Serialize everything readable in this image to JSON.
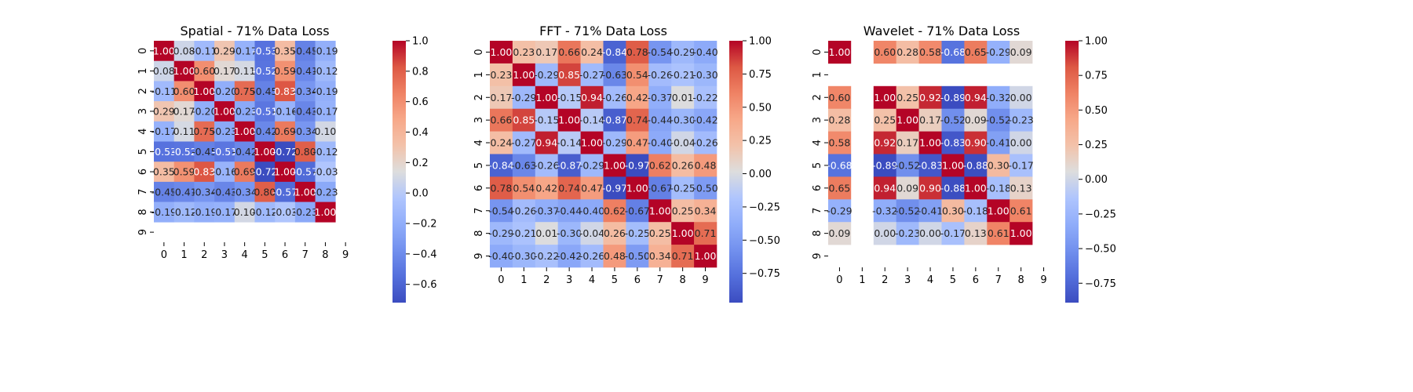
{
  "chart_data": [
    {
      "type": "heatmap",
      "title": "Spatial - 71% Data Loss",
      "xlabel": "",
      "ylabel": "",
      "x_tick_labels": [
        "0",
        "1",
        "2",
        "3",
        "4",
        "5",
        "6",
        "7",
        "8",
        "9"
      ],
      "y_tick_labels": [
        "0",
        "1",
        "2",
        "3",
        "4",
        "5",
        "6",
        "7",
        "8",
        "9"
      ],
      "colormap": "coolwarm",
      "vmin": -0.72,
      "vmax": 1.0,
      "colorbar_ticks": [
        -0.6,
        -0.4,
        -0.2,
        0.0,
        0.2,
        0.4,
        0.6,
        0.8,
        1.0
      ],
      "colorbar_tick_labels": [
        "−0.6",
        "−0.4",
        "−0.2",
        "0.0",
        "0.2",
        "0.4",
        "0.6",
        "0.8",
        "1.0"
      ],
      "values": [
        [
          1.0,
          0.08,
          -0.11,
          0.29,
          -0.17,
          -0.53,
          0.35,
          -0.45,
          -0.19,
          null
        ],
        [
          0.08,
          1.0,
          0.6,
          0.17,
          0.11,
          -0.52,
          0.59,
          -0.41,
          -0.12,
          null
        ],
        [
          -0.11,
          0.6,
          1.0,
          -0.2,
          0.75,
          -0.45,
          0.83,
          -0.34,
          -0.19,
          null
        ],
        [
          0.29,
          0.17,
          -0.2,
          1.0,
          -0.23,
          -0.51,
          -0.16,
          -0.43,
          -0.17,
          null
        ],
        [
          -0.17,
          0.11,
          0.75,
          -0.23,
          1.0,
          -0.42,
          0.69,
          -0.34,
          0.1,
          null
        ],
        [
          -0.53,
          -0.52,
          -0.45,
          -0.51,
          -0.42,
          1.0,
          -0.72,
          0.8,
          -0.12,
          null
        ],
        [
          0.35,
          0.59,
          0.83,
          -0.16,
          0.69,
          -0.72,
          1.0,
          -0.57,
          -0.03,
          null
        ],
        [
          -0.45,
          -0.41,
          -0.34,
          -0.43,
          -0.34,
          0.8,
          -0.57,
          1.0,
          -0.23,
          null
        ],
        [
          -0.19,
          -0.12,
          -0.19,
          -0.17,
          0.1,
          -0.12,
          -0.03,
          -0.23,
          1.0,
          null
        ],
        [
          null,
          null,
          null,
          null,
          null,
          null,
          null,
          null,
          null,
          null
        ]
      ]
    },
    {
      "type": "heatmap",
      "title": "FFT - 71% Data Loss",
      "xlabel": "",
      "ylabel": "",
      "x_tick_labels": [
        "0",
        "1",
        "2",
        "3",
        "4",
        "5",
        "6",
        "7",
        "8",
        "9"
      ],
      "y_tick_labels": [
        "0",
        "1",
        "2",
        "3",
        "4",
        "5",
        "6",
        "7",
        "8",
        "9"
      ],
      "colormap": "coolwarm",
      "vmin": -0.97,
      "vmax": 1.0,
      "colorbar_ticks": [
        -0.75,
        -0.5,
        -0.25,
        0.0,
        0.25,
        0.5,
        0.75,
        1.0
      ],
      "colorbar_tick_labels": [
        "−0.75",
        "−0.50",
        "−0.25",
        "0.00",
        "0.25",
        "0.50",
        "0.75",
        "1.00"
      ],
      "values": [
        [
          1.0,
          0.23,
          0.17,
          0.66,
          0.24,
          -0.84,
          0.78,
          -0.54,
          -0.29,
          -0.4
        ],
        [
          0.23,
          1.0,
          -0.29,
          0.85,
          -0.27,
          -0.63,
          0.54,
          -0.26,
          -0.21,
          -0.3
        ],
        [
          0.17,
          -0.29,
          1.0,
          -0.15,
          0.94,
          -0.26,
          0.42,
          -0.37,
          0.01,
          -0.22
        ],
        [
          0.66,
          0.85,
          -0.15,
          1.0,
          -0.14,
          -0.87,
          0.74,
          -0.44,
          -0.3,
          -0.42
        ],
        [
          0.24,
          -0.27,
          0.94,
          -0.14,
          1.0,
          -0.29,
          0.47,
          -0.4,
          -0.04,
          -0.26
        ],
        [
          -0.84,
          -0.63,
          -0.26,
          -0.87,
          -0.29,
          1.0,
          -0.97,
          0.62,
          0.26,
          0.48
        ],
        [
          0.78,
          0.54,
          0.42,
          0.74,
          0.47,
          -0.97,
          1.0,
          -0.67,
          -0.25,
          -0.5
        ],
        [
          -0.54,
          -0.26,
          -0.37,
          -0.44,
          -0.4,
          0.62,
          -0.67,
          1.0,
          0.25,
          0.34
        ],
        [
          -0.29,
          -0.21,
          0.01,
          -0.3,
          -0.04,
          0.26,
          -0.25,
          0.25,
          1.0,
          0.71
        ],
        [
          -0.4,
          -0.3,
          -0.22,
          -0.42,
          -0.26,
          0.48,
          -0.5,
          0.34,
          0.71,
          1.0
        ]
      ]
    },
    {
      "type": "heatmap",
      "title": "Wavelet - 71% Data Loss",
      "xlabel": "",
      "ylabel": "",
      "x_tick_labels": [
        "0",
        "1",
        "2",
        "3",
        "4",
        "5",
        "6",
        "7",
        "8",
        "9"
      ],
      "y_tick_labels": [
        "0",
        "1",
        "2",
        "3",
        "4",
        "5",
        "6",
        "7",
        "8",
        "9"
      ],
      "colormap": "coolwarm",
      "vmin": -0.89,
      "vmax": 1.0,
      "colorbar_ticks": [
        -0.75,
        -0.5,
        -0.25,
        0.0,
        0.25,
        0.5,
        0.75,
        1.0
      ],
      "colorbar_tick_labels": [
        "−0.75",
        "−0.50",
        "−0.25",
        "0.00",
        "0.25",
        "0.50",
        "0.75",
        "1.00"
      ],
      "values": [
        [
          1.0,
          null,
          0.6,
          0.28,
          0.58,
          -0.68,
          0.65,
          -0.29,
          0.09,
          null
        ],
        [
          null,
          null,
          null,
          null,
          null,
          null,
          null,
          null,
          null,
          null
        ],
        [
          0.6,
          null,
          1.0,
          0.25,
          0.92,
          -0.89,
          0.94,
          -0.32,
          0.0,
          null
        ],
        [
          0.28,
          null,
          0.25,
          1.0,
          0.17,
          -0.52,
          0.09,
          -0.52,
          -0.23,
          null
        ],
        [
          0.58,
          null,
          0.92,
          0.17,
          1.0,
          -0.83,
          0.9,
          -0.41,
          0.0,
          null
        ],
        [
          -0.68,
          null,
          -0.89,
          -0.52,
          -0.83,
          1.0,
          -0.88,
          0.3,
          -0.17,
          null
        ],
        [
          0.65,
          null,
          0.94,
          0.09,
          0.9,
          -0.88,
          1.0,
          -0.18,
          0.13,
          null
        ],
        [
          -0.29,
          null,
          -0.32,
          -0.52,
          -0.41,
          0.3,
          -0.18,
          1.0,
          0.61,
          null
        ],
        [
          0.09,
          null,
          0.0,
          -0.23,
          0.0,
          -0.17,
          0.13,
          0.61,
          1.0,
          null
        ],
        [
          null,
          null,
          null,
          null,
          null,
          null,
          null,
          null,
          null,
          null
        ]
      ]
    }
  ]
}
